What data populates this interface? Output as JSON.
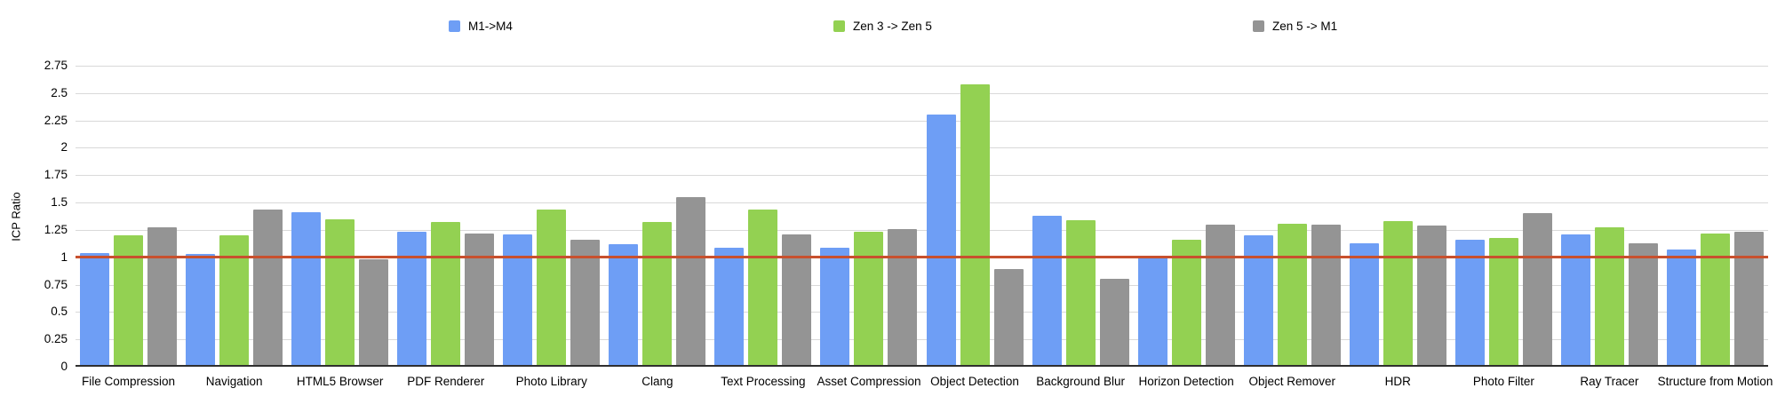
{
  "chart_data": {
    "type": "bar",
    "title": "",
    "xlabel": "",
    "ylabel": "ICP Ratio",
    "ylim": [
      0,
      2.75
    ],
    "ytick_step": 0.25,
    "yticks": [
      "0",
      "0.25",
      "0.5",
      "0.75",
      "1",
      "1.25",
      "1.5",
      "1.75",
      "2",
      "2.25",
      "2.5",
      "2.75"
    ],
    "grid": true,
    "legend_position": "top",
    "categories": [
      "File Compression",
      "Navigation",
      "HTML5 Browser",
      "PDF Renderer",
      "Photo Library",
      "Clang",
      "Text Processing",
      "Asset Compression",
      "Object Detection",
      "Background Blur",
      "Horizon Detection",
      "Object Remover",
      "HDR",
      "Photo Filter",
      "Ray Tracer",
      "Structure from Motion"
    ],
    "series": [
      {
        "name": "M1->M4",
        "color": "#6e9ef5",
        "values": [
          1.04,
          1.03,
          1.41,
          1.23,
          1.21,
          1.12,
          1.09,
          1.09,
          2.3,
          1.38,
          1.0,
          1.2,
          1.13,
          1.16,
          1.21,
          1.07
        ]
      },
      {
        "name": "Zen 3 -> Zen 5",
        "color": "#93d152",
        "values": [
          1.2,
          1.2,
          1.35,
          1.32,
          1.44,
          1.32,
          1.44,
          1.23,
          2.58,
          1.34,
          1.16,
          1.31,
          1.33,
          1.18,
          1.27,
          1.22
        ]
      },
      {
        "name": "Zen 5 -> M1",
        "color": "#949494",
        "values": [
          1.27,
          1.44,
          0.98,
          1.22,
          1.16,
          1.55,
          1.21,
          1.26,
          0.89,
          0.8,
          1.3,
          1.3,
          1.29,
          1.4,
          1.13,
          1.23
        ]
      }
    ],
    "reference_line": {
      "value": 1,
      "color": "#c8502e"
    }
  },
  "colors": {
    "background": "#ffffff",
    "gridline": "#d9d9d9",
    "axis_line": "#2f2f2f",
    "text": "#000000"
  }
}
